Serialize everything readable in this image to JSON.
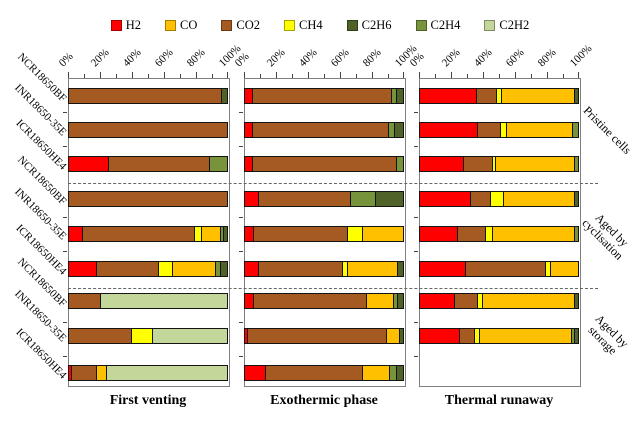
{
  "figure": {
    "legend": [
      {
        "gas": "H2",
        "color": "#FF0000"
      },
      {
        "gas": "CO",
        "color": "#FFC000"
      },
      {
        "gas": "CO2",
        "color": "#A55A21"
      },
      {
        "gas": "CH4",
        "color": "#FFFF00"
      },
      {
        "gas": "C2H6",
        "color": "#4F6228"
      },
      {
        "gas": "C2H4",
        "color": "#77933C"
      },
      {
        "gas": "C2H2",
        "color": "#C4D79B"
      }
    ]
  },
  "chart_data": {
    "type": "bar",
    "stacked": true,
    "orientation": "horizontal",
    "unit": "%",
    "x_range": [
      0,
      100
    ],
    "x_ticks": [
      "0%",
      "20%",
      "40%",
      "60%",
      "80%",
      "100%"
    ],
    "grid": false,
    "legend_position": "top",
    "cell_labels": [
      "NCR18650BF",
      "INR18650-35E",
      "ICR18650HE4"
    ],
    "group_labels": [
      {
        "label": "Pristine cells",
        "lines": [
          "Pristine cells"
        ]
      },
      {
        "label": "Aged by cyclisation",
        "lines": [
          "Aged by",
          "cyclisation"
        ]
      },
      {
        "label": "Aged by storage",
        "lines": [
          "Aged by",
          "storage"
        ]
      }
    ],
    "panels": [
      {
        "title": "First venting",
        "rows": [
          {
            "cell": "NCR18650BF",
            "group": "Pristine cells",
            "segments": [
              {
                "gas": "CO2",
                "value": 97
              },
              {
                "gas": "C2H6",
                "value": 3
              }
            ]
          },
          {
            "cell": "INR18650-35E",
            "group": "Pristine cells",
            "segments": [
              {
                "gas": "CO2",
                "value": 100
              }
            ]
          },
          {
            "cell": "ICR18650HE4",
            "group": "Pristine cells",
            "segments": [
              {
                "gas": "H2",
                "value": 25
              },
              {
                "gas": "CO2",
                "value": 64
              },
              {
                "gas": "C2H4",
                "value": 11
              }
            ]
          },
          {
            "cell": "NCR18650BF",
            "group": "Aged by cyclisation",
            "segments": [
              {
                "gas": "CO2",
                "value": 100
              }
            ]
          },
          {
            "cell": "INR18650-35E",
            "group": "Aged by cyclisation",
            "segments": [
              {
                "gas": "H2",
                "value": 9
              },
              {
                "gas": "CO2",
                "value": 71
              },
              {
                "gas": "CH4",
                "value": 4
              },
              {
                "gas": "CO",
                "value": 12
              },
              {
                "gas": "C2H4",
                "value": 2
              },
              {
                "gas": "C2H6",
                "value": 2
              }
            ]
          },
          {
            "cell": "ICR18650HE4",
            "group": "Aged by cyclisation",
            "segments": [
              {
                "gas": "H2",
                "value": 18
              },
              {
                "gas": "CO2",
                "value": 39
              },
              {
                "gas": "CH4",
                "value": 9
              },
              {
                "gas": "CO",
                "value": 27
              },
              {
                "gas": "C2H4",
                "value": 3
              },
              {
                "gas": "C2H6",
                "value": 4
              }
            ]
          },
          {
            "cell": "NCR18650BF",
            "group": "Aged by storage",
            "segments": [
              {
                "gas": "CO2",
                "value": 20
              },
              {
                "gas": "C2H2",
                "value": 80
              }
            ]
          },
          {
            "cell": "INR18650-35E",
            "group": "Aged by storage",
            "segments": [
              {
                "gas": "CO2",
                "value": 40
              },
              {
                "gas": "CH4",
                "value": 13
              },
              {
                "gas": "C2H2",
                "value": 47
              }
            ]
          },
          {
            "cell": "ICR18650HE4",
            "group": "Aged by storage",
            "segments": [
              {
                "gas": "H2",
                "value": 2
              },
              {
                "gas": "CO2",
                "value": 16
              },
              {
                "gas": "CO",
                "value": 6
              },
              {
                "gas": "C2H2",
                "value": 76
              }
            ]
          }
        ]
      },
      {
        "title": "Exothermic phase",
        "rows": [
          {
            "cell": "NCR18650BF",
            "group": "Pristine cells",
            "segments": [
              {
                "gas": "H2",
                "value": 5
              },
              {
                "gas": "CO2",
                "value": 88
              },
              {
                "gas": "C2H4",
                "value": 3
              },
              {
                "gas": "C2H6",
                "value": 4
              }
            ]
          },
          {
            "cell": "INR18650-35E",
            "group": "Pristine cells",
            "segments": [
              {
                "gas": "H2",
                "value": 5
              },
              {
                "gas": "CO2",
                "value": 86
              },
              {
                "gas": "C2H4",
                "value": 4
              },
              {
                "gas": "C2H6",
                "value": 5
              }
            ]
          },
          {
            "cell": "ICR18650HE4",
            "group": "Pristine cells",
            "segments": [
              {
                "gas": "H2",
                "value": 5
              },
              {
                "gas": "CO2",
                "value": 91
              },
              {
                "gas": "C2H4",
                "value": 4
              }
            ]
          },
          {
            "cell": "NCR18650BF",
            "group": "Aged by cyclisation",
            "segments": [
              {
                "gas": "H2",
                "value": 9
              },
              {
                "gas": "CO2",
                "value": 58
              },
              {
                "gas": "C2H4",
                "value": 16
              },
              {
                "gas": "C2H6",
                "value": 17
              }
            ]
          },
          {
            "cell": "INR18650-35E",
            "group": "Aged by cyclisation",
            "segments": [
              {
                "gas": "H2",
                "value": 6
              },
              {
                "gas": "CO2",
                "value": 59
              },
              {
                "gas": "CH4",
                "value": 10
              },
              {
                "gas": "CO",
                "value": 25
              }
            ]
          },
          {
            "cell": "ICR18650HE4",
            "group": "Aged by cyclisation",
            "segments": [
              {
                "gas": "H2",
                "value": 9
              },
              {
                "gas": "CO2",
                "value": 53
              },
              {
                "gas": "CH4",
                "value": 3
              },
              {
                "gas": "CO",
                "value": 32
              },
              {
                "gas": "C2H6",
                "value": 3
              }
            ]
          },
          {
            "cell": "NCR18650BF",
            "group": "Aged by storage",
            "segments": [
              {
                "gas": "H2",
                "value": 6
              },
              {
                "gas": "CO2",
                "value": 71
              },
              {
                "gas": "CO",
                "value": 17
              },
              {
                "gas": "C2H4",
                "value": 3
              },
              {
                "gas": "C2H6",
                "value": 3
              }
            ]
          },
          {
            "cell": "INR18650-35E",
            "group": "Aged by storage",
            "segments": [
              {
                "gas": "H2",
                "value": 2
              },
              {
                "gas": "CO2",
                "value": 88
              },
              {
                "gas": "CO",
                "value": 8
              },
              {
                "gas": "C2H6",
                "value": 2
              }
            ]
          },
          {
            "cell": "ICR18650HE4",
            "group": "Aged by storage",
            "segments": [
              {
                "gas": "H2",
                "value": 13
              },
              {
                "gas": "CO2",
                "value": 62
              },
              {
                "gas": "CO",
                "value": 17
              },
              {
                "gas": "C2H4",
                "value": 4
              },
              {
                "gas": "C2H6",
                "value": 4
              }
            ]
          }
        ]
      },
      {
        "title": "Thermal runaway",
        "rows": [
          {
            "cell": "NCR18650BF",
            "group": "Pristine cells",
            "segments": [
              {
                "gas": "H2",
                "value": 36
              },
              {
                "gas": "CO2",
                "value": 13
              },
              {
                "gas": "CH4",
                "value": 3
              },
              {
                "gas": "CO",
                "value": 46
              },
              {
                "gas": "C2H6",
                "value": 2
              }
            ]
          },
          {
            "cell": "INR18650-35E",
            "group": "Pristine cells",
            "segments": [
              {
                "gas": "H2",
                "value": 37
              },
              {
                "gas": "CO2",
                "value": 14
              },
              {
                "gas": "CH4",
                "value": 4
              },
              {
                "gas": "CO",
                "value": 42
              },
              {
                "gas": "C2H4",
                "value": 3
              }
            ]
          },
          {
            "cell": "ICR18650HE4",
            "group": "Pristine cells",
            "segments": [
              {
                "gas": "H2",
                "value": 28
              },
              {
                "gas": "CO2",
                "value": 18
              },
              {
                "gas": "CH4",
                "value": 2
              },
              {
                "gas": "CO",
                "value": 50
              },
              {
                "gas": "C2H4",
                "value": 2
              }
            ]
          },
          {
            "cell": "NCR18650BF",
            "group": "Aged by cyclisation",
            "segments": [
              {
                "gas": "H2",
                "value": 32
              },
              {
                "gas": "CO2",
                "value": 13
              },
              {
                "gas": "CH4",
                "value": 8
              },
              {
                "gas": "CO",
                "value": 45
              },
              {
                "gas": "C2H6",
                "value": 2
              }
            ]
          },
          {
            "cell": "INR18650-35E",
            "group": "Aged by cyclisation",
            "segments": [
              {
                "gas": "H2",
                "value": 24
              },
              {
                "gas": "CO2",
                "value": 18
              },
              {
                "gas": "CH4",
                "value": 4
              },
              {
                "gas": "CO",
                "value": 52
              },
              {
                "gas": "C2H4",
                "value": 2
              }
            ]
          },
          {
            "cell": "ICR18650HE4",
            "group": "Aged by cyclisation",
            "segments": [
              {
                "gas": "H2",
                "value": 29
              },
              {
                "gas": "CO2",
                "value": 51
              },
              {
                "gas": "CH4",
                "value": 3
              },
              {
                "gas": "CO",
                "value": 17
              }
            ]
          },
          {
            "cell": "NCR18650BF",
            "group": "Aged by storage",
            "segments": [
              {
                "gas": "H2",
                "value": 22
              },
              {
                "gas": "CO2",
                "value": 15
              },
              {
                "gas": "CH4",
                "value": 3
              },
              {
                "gas": "CO",
                "value": 58
              },
              {
                "gas": "C2H6",
                "value": 2
              }
            ]
          },
          {
            "cell": "INR18650-35E",
            "group": "Aged by storage",
            "segments": [
              {
                "gas": "H2",
                "value": 25
              },
              {
                "gas": "CO2",
                "value": 10
              },
              {
                "gas": "CH4",
                "value": 3
              },
              {
                "gas": "CO",
                "value": 58
              },
              {
                "gas": "C2H4",
                "value": 2
              },
              {
                "gas": "C2H6",
                "value": 2
              }
            ]
          },
          {
            "cell": "ICR18650HE4",
            "group": "Aged by storage",
            "segments": []
          }
        ]
      }
    ]
  }
}
